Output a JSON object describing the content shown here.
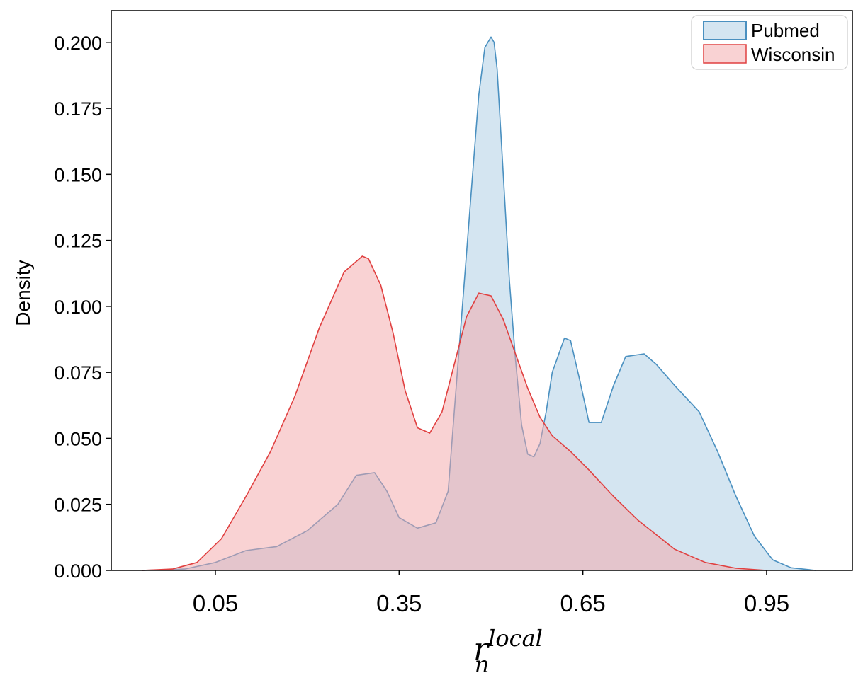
{
  "chart_data": {
    "type": "area",
    "title": "",
    "xlabel": {
      "base": "r",
      "subscript": "n",
      "superscript": "local"
    },
    "ylabel": "Density",
    "xlim": [
      -0.12,
      1.09
    ],
    "ylim": [
      0,
      0.212
    ],
    "x_ticks": [
      0.05,
      0.35,
      0.65,
      0.95
    ],
    "x_tick_labels": [
      "0.05",
      "0.35",
      "0.65",
      "0.95"
    ],
    "y_ticks": [
      0,
      0.025,
      0.05,
      0.075,
      0.1,
      0.125,
      0.15,
      0.175,
      0.2
    ],
    "y_tick_labels": [
      "0.000",
      "0.025",
      "0.050",
      "0.075",
      "0.100",
      "0.125",
      "0.150",
      "0.175",
      "0.200"
    ],
    "grid": false,
    "legend_position": "top-right",
    "series": [
      {
        "name": "Pubmed",
        "line_color": "#4a90c0",
        "fill_color": "#a9cbe4",
        "fill_opacity": 0.5,
        "x": [
          -0.07,
          0.0,
          0.05,
          0.1,
          0.15,
          0.2,
          0.25,
          0.28,
          0.31,
          0.33,
          0.35,
          0.38,
          0.41,
          0.43,
          0.44,
          0.45,
          0.46,
          0.47,
          0.48,
          0.49,
          0.5,
          0.505,
          0.51,
          0.52,
          0.53,
          0.54,
          0.55,
          0.56,
          0.57,
          0.58,
          0.59,
          0.6,
          0.62,
          0.63,
          0.645,
          0.66,
          0.68,
          0.7,
          0.72,
          0.75,
          0.77,
          0.8,
          0.84,
          0.87,
          0.9,
          0.93,
          0.96,
          0.99,
          1.03
        ],
        "y": [
          0.0,
          0.0005,
          0.003,
          0.0075,
          0.009,
          0.015,
          0.025,
          0.036,
          0.037,
          0.03,
          0.02,
          0.016,
          0.018,
          0.03,
          0.06,
          0.09,
          0.12,
          0.15,
          0.18,
          0.198,
          0.202,
          0.2,
          0.19,
          0.15,
          0.11,
          0.08,
          0.055,
          0.044,
          0.043,
          0.048,
          0.06,
          0.075,
          0.088,
          0.087,
          0.072,
          0.056,
          0.056,
          0.07,
          0.081,
          0.082,
          0.078,
          0.07,
          0.06,
          0.045,
          0.028,
          0.013,
          0.004,
          0.001,
          0.0
        ]
      },
      {
        "name": "Wisconsin",
        "line_color": "#e04040",
        "fill_color": "#f4a5a8",
        "fill_opacity": 0.5,
        "x": [
          -0.07,
          -0.02,
          0.02,
          0.06,
          0.1,
          0.14,
          0.18,
          0.22,
          0.26,
          0.29,
          0.3,
          0.32,
          0.34,
          0.36,
          0.38,
          0.4,
          0.42,
          0.44,
          0.46,
          0.48,
          0.5,
          0.52,
          0.54,
          0.56,
          0.58,
          0.6,
          0.63,
          0.66,
          0.7,
          0.74,
          0.8,
          0.85,
          0.9,
          0.95
        ],
        "y": [
          0.0,
          0.0005,
          0.003,
          0.012,
          0.028,
          0.045,
          0.066,
          0.092,
          0.113,
          0.119,
          0.118,
          0.108,
          0.09,
          0.068,
          0.054,
          0.052,
          0.06,
          0.078,
          0.096,
          0.105,
          0.104,
          0.095,
          0.082,
          0.069,
          0.058,
          0.051,
          0.045,
          0.038,
          0.028,
          0.019,
          0.008,
          0.003,
          0.0008,
          0.0
        ]
      }
    ]
  }
}
